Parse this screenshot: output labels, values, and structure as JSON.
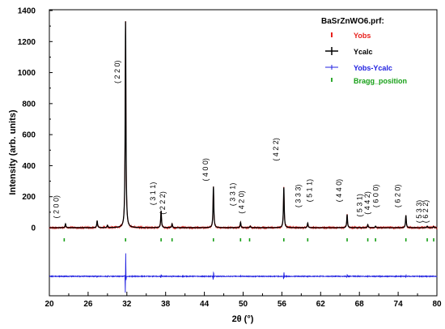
{
  "chart_data": {
    "type": "line",
    "title": "BaSrZnWO6.prf:",
    "xlabel": "2θ (°)",
    "ylabel": "Intensity (arb. units)",
    "xlim": [
      20,
      80
    ],
    "ylim": [
      -100,
      1400
    ],
    "x_ticks": [
      "20",
      "26",
      "32",
      "38",
      "44",
      "50",
      "56",
      "62",
      "68",
      "74",
      "80"
    ],
    "y_ticks": [
      "0",
      "200",
      "400",
      "600",
      "800",
      "1000",
      "1200",
      "1400"
    ],
    "grid": false,
    "legend_position": "top-right",
    "series": [
      {
        "name": "Yobs",
        "color": "#e8201c"
      },
      {
        "name": "Ycalc",
        "color": "#000000"
      },
      {
        "name": "Yobs-Ycalc",
        "color": "#2020e0"
      },
      {
        "name": "Bragg_position",
        "color": "#18a018"
      }
    ],
    "peaks": [
      {
        "two_theta": 22.5,
        "intensity": 25
      },
      {
        "two_theta": 27.4,
        "intensity": 45
      },
      {
        "two_theta": 29.0,
        "intensity": 15
      },
      {
        "two_theta": 31.8,
        "intensity": 1330
      },
      {
        "two_theta": 37.3,
        "intensity": 110
      },
      {
        "two_theta": 39.0,
        "intensity": 25
      },
      {
        "two_theta": 45.4,
        "intensity": 265
      },
      {
        "two_theta": 49.6,
        "intensity": 35
      },
      {
        "two_theta": 51.1,
        "intensity": 10
      },
      {
        "two_theta": 56.3,
        "intensity": 260
      },
      {
        "two_theta": 60.0,
        "intensity": 30
      },
      {
        "two_theta": 66.1,
        "intensity": 85
      },
      {
        "two_theta": 69.3,
        "intensity": 20
      },
      {
        "two_theta": 70.5,
        "intensity": 10
      },
      {
        "two_theta": 75.2,
        "intensity": 80
      },
      {
        "two_theta": 78.5,
        "intensity": 10
      },
      {
        "two_theta": 79.5,
        "intensity": 8
      }
    ],
    "hkl_labels": [
      {
        "two_theta": 22.3,
        "label": "( 2 0 0)",
        "intensity": 60
      },
      {
        "two_theta": 31.8,
        "label": "( 2 2 0)",
        "intensity": 930
      },
      {
        "two_theta": 37.3,
        "label": "( 3 1 1)",
        "intensity": 145
      },
      {
        "two_theta": 38.8,
        "label": "( 2 2 2)",
        "intensity": 85
      },
      {
        "two_theta": 45.4,
        "label": "( 4 0 0)",
        "intensity": 300
      },
      {
        "two_theta": 49.6,
        "label": "( 3 3 1)",
        "intensity": 140
      },
      {
        "two_theta": 51.0,
        "label": "( 4 2 0)",
        "intensity": 90
      },
      {
        "two_theta": 56.3,
        "label": "( 4 2 2)",
        "intensity": 430
      },
      {
        "two_theta": 59.8,
        "label": "( 3 3 3)",
        "intensity": 130
      },
      {
        "two_theta": 61.5,
        "label": "( 5 1 1)",
        "intensity": 165
      },
      {
        "two_theta": 66.1,
        "label": "( 4 4 0)",
        "intensity": 165
      },
      {
        "two_theta": 69.3,
        "label": "( 5 3 1)",
        "intensity": 70
      },
      {
        "two_theta": 70.5,
        "label": "( 4 4 2)",
        "intensity": 85
      },
      {
        "two_theta": 71.8,
        "label": "( 6 0 0)",
        "intensity": 130
      },
      {
        "two_theta": 75.2,
        "label": "( 6 2 0)",
        "intensity": 130
      },
      {
        "two_theta": 78.5,
        "label": "( 5 3 3)",
        "intensity": 30
      },
      {
        "two_theta": 79.5,
        "label": "( 6 2 2)",
        "intensity": 30
      }
    ],
    "bragg_positions": [
      22.3,
      31.8,
      37.3,
      39.0,
      45.4,
      49.6,
      51.0,
      56.3,
      60.0,
      66.1,
      69.3,
      70.5,
      75.2,
      78.5,
      79.5
    ]
  }
}
